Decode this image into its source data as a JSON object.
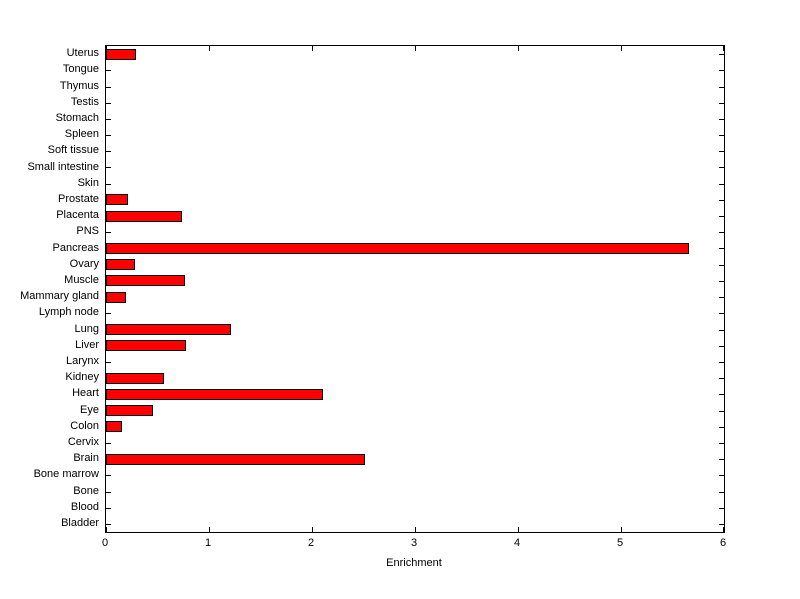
{
  "chart_data": {
    "type": "bar",
    "orientation": "horizontal",
    "title": "",
    "xlabel": "Enrichment",
    "ylabel": "",
    "xlim": [
      0,
      6
    ],
    "xticks": [
      0,
      1,
      2,
      3,
      4,
      5,
      6
    ],
    "grid": false,
    "legend": "none",
    "bar_color": "#FF0000",
    "bar_edge_color": "#000000",
    "categories": [
      "Uterus",
      "Tongue",
      "Thymus",
      "Testis",
      "Stomach",
      "Spleen",
      "Soft tissue",
      "Small intestine",
      "Skin",
      "Prostate",
      "Placenta",
      "PNS",
      "Pancreas",
      "Ovary",
      "Muscle",
      "Mammary gland",
      "Lymph node",
      "Lung",
      "Liver",
      "Larynx",
      "Kidney",
      "Heart",
      "Eye",
      "Colon",
      "Cervix",
      "Brain",
      "Bone marrow",
      "Bone",
      "Blood",
      "Bladder"
    ],
    "values": [
      0.28,
      0,
      0,
      0,
      0,
      0,
      0,
      0,
      0,
      0.2,
      0.73,
      0,
      5.65,
      0.27,
      0.76,
      0.18,
      0,
      1.2,
      0.77,
      0,
      0.55,
      2.1,
      0.45,
      0.15,
      0,
      2.5,
      0,
      0,
      0,
      0
    ]
  }
}
